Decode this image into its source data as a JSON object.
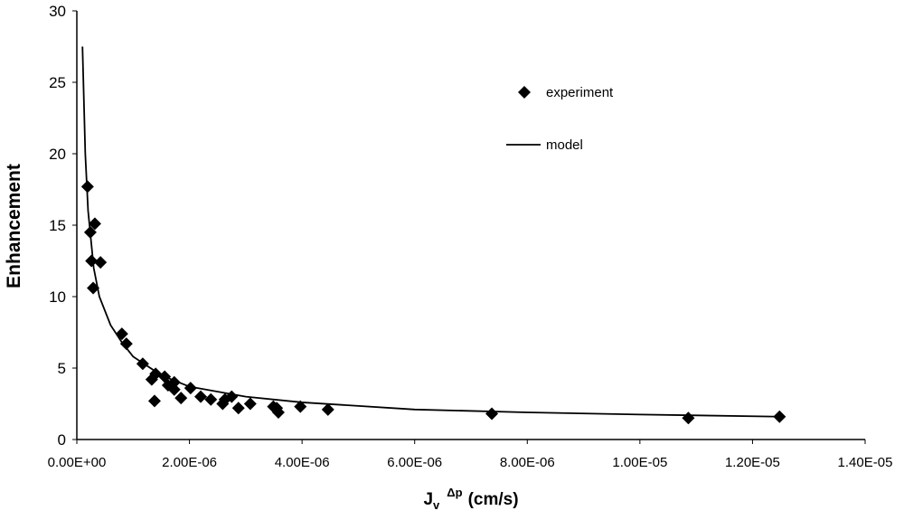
{
  "chart_data": {
    "type": "scatter",
    "y_label": "Enhancement",
    "x_label": {
      "base": "J",
      "subscript": "v",
      "superscript": "Δp",
      "rest": "(cm/s)"
    },
    "xlim": [
      0,
      1.4e-05
    ],
    "xticks": [
      {
        "value": 0,
        "label": "0.00E+00"
      },
      {
        "value": 2e-06,
        "label": "2.00E-06"
      },
      {
        "value": 4e-06,
        "label": "4.00E-06"
      },
      {
        "value": 6e-06,
        "label": "6.00E-06"
      },
      {
        "value": 8e-06,
        "label": "8.00E-06"
      },
      {
        "value": 1e-05,
        "label": "1.00E-05"
      },
      {
        "value": 1.2e-05,
        "label": "1.20E-05"
      },
      {
        "value": 1.4e-05,
        "label": "1.40E-05"
      }
    ],
    "ylim": [
      0,
      30
    ],
    "yticks": [
      0,
      5,
      10,
      15,
      20,
      25,
      30
    ],
    "grid": false,
    "series": [
      {
        "name": "experiment",
        "type": "scatter",
        "color": "#000000",
        "x": [
          1.9e-07,
          2.4e-07,
          3.2e-07,
          2.6e-07,
          4.2e-07,
          2.9e-07,
          8e-07,
          8.8e-07,
          1.17e-06,
          1.33e-06,
          1.4e-06,
          1.38e-06,
          1.56e-06,
          1.62e-06,
          1.73e-06,
          1.73e-06,
          1.85e-06,
          2.02e-06,
          2.2e-06,
          2.38e-06,
          2.59e-06,
          2.63e-06,
          2.75e-06,
          2.87e-06,
          3.08e-06,
          3.49e-06,
          3.55e-06,
          3.58e-06,
          3.97e-06,
          4.46e-06,
          7.37e-06,
          1.086e-05,
          1.248e-05
        ],
        "values": [
          17.7,
          14.5,
          15.1,
          12.5,
          12.4,
          10.6,
          7.4,
          6.7,
          5.3,
          4.2,
          4.6,
          2.7,
          4.4,
          3.8,
          4.0,
          3.5,
          2.9,
          3.6,
          3.0,
          2.8,
          2.5,
          2.8,
          3.0,
          2.2,
          2.5,
          2.3,
          2.2,
          1.9,
          2.3,
          2.1,
          1.8,
          1.5,
          1.6
        ]
      },
      {
        "name": "model",
        "type": "line",
        "color": "#000000",
        "x": [
          1e-07,
          1.5e-07,
          2e-07,
          3e-07,
          4e-07,
          6e-07,
          8e-07,
          1e-06,
          1.5e-06,
          2e-06,
          3e-06,
          4e-06,
          6e-06,
          8e-06,
          1e-05,
          1.25e-05
        ],
        "values": [
          27.5,
          20,
          16,
          12,
          10,
          8,
          6.8,
          5.8,
          4.5,
          3.7,
          3.0,
          2.6,
          2.1,
          1.9,
          1.75,
          1.6
        ]
      }
    ]
  }
}
